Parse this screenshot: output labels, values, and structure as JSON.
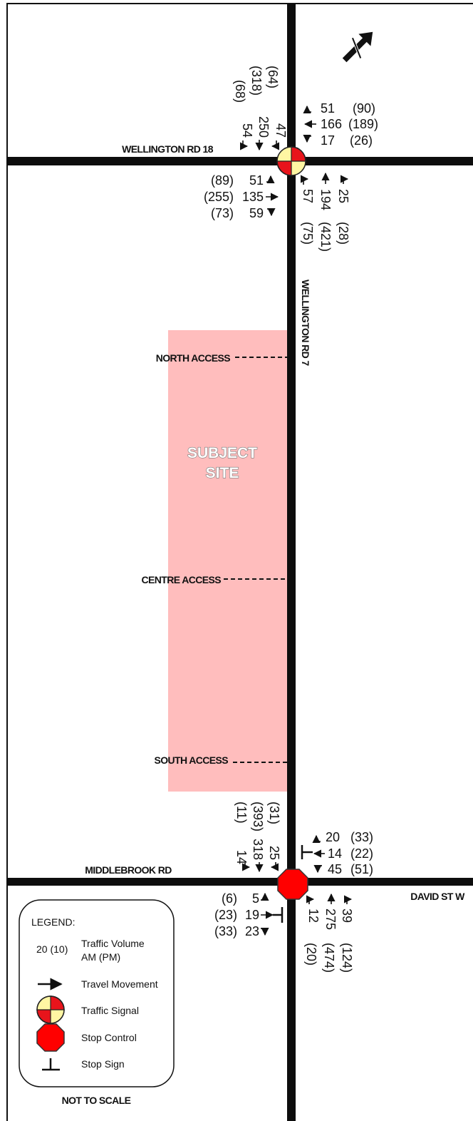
{
  "roads": {
    "north_road": "WELLINGTON RD 18",
    "main_road": "WELLINGTON RD 7",
    "south_road_west": "MIDDLEBROOK RD",
    "south_road_east": "DAVID ST W"
  },
  "site": {
    "label_line1": "SUBJECT",
    "label_line2": "SITE",
    "accesses": [
      "NORTH ACCESS",
      "CENTRE ACCESS",
      "SOUTH ACCESS"
    ]
  },
  "north_intersection": {
    "control": "traffic-signal",
    "southbound_volumes": {
      "am": [
        "54",
        "250",
        "47"
      ],
      "pm": [
        "(68)",
        "(318)",
        "(64)"
      ]
    },
    "westbound_volumes": {
      "am": [
        "51",
        "166",
        "17"
      ],
      "pm": [
        "(90)",
        "(189)",
        "(26)"
      ]
    },
    "eastbound_volumes": {
      "am": [
        "51",
        "135",
        "59"
      ],
      "pm": [
        "(89)",
        "(255)",
        "(73)"
      ]
    },
    "northbound_volumes": {
      "am": [
        "57",
        "194",
        "25"
      ],
      "pm": [
        "(75)",
        "(421)",
        "(28)"
      ]
    }
  },
  "south_intersection": {
    "control": "stop-control",
    "southbound_volumes": {
      "am": [
        "14",
        "318",
        "25"
      ],
      "pm": [
        "(11)",
        "(393)",
        "(31)"
      ]
    },
    "westbound_volumes": {
      "am": [
        "20",
        "14",
        "45"
      ],
      "pm": [
        "(33)",
        "(22)",
        "(51)"
      ]
    },
    "eastbound_volumes": {
      "am": [
        "5",
        "19",
        "23"
      ],
      "pm": [
        "(6)",
        "(23)",
        "(33)"
      ]
    },
    "northbound_volumes": {
      "am": [
        "12",
        "275",
        "39"
      ],
      "pm": [
        "(20)",
        "(474)",
        "(124)"
      ]
    }
  },
  "legend": {
    "title": "LEGEND:",
    "sample_value": "20 (10)",
    "volume_line1": "Traffic Volume",
    "volume_line2": "AM (PM)",
    "travel_movement": "Travel Movement",
    "traffic_signal": "Traffic Signal",
    "stop_control": "Stop Control",
    "stop_sign": "Stop Sign"
  },
  "scale_note": "NOT TO SCALE",
  "colors": {
    "site_fill": "#ffbdbd",
    "signal_red": "#e8141b",
    "signal_yellow": "#fff6a3",
    "road": "#0d0d0d"
  },
  "icons": [
    "north-arrow-icon",
    "traffic-signal-icon",
    "stop-control-icon",
    "stop-sign-icon"
  ]
}
